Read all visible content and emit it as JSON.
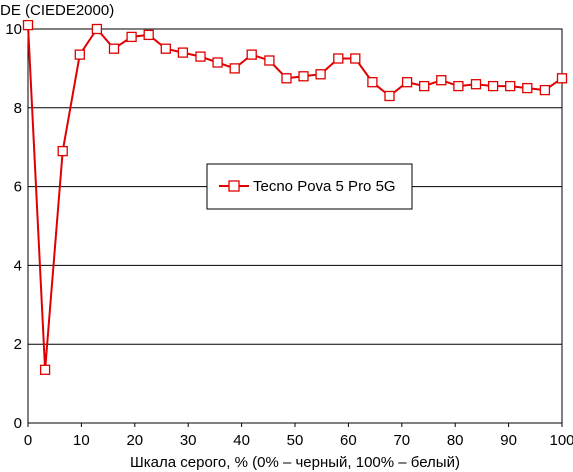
{
  "chart_data": {
    "type": "line",
    "title": "",
    "xlabel": "Шкала серого, % (0% – черный, 100% – белый)",
    "ylabel": "DE (CIEDE2000)",
    "xlim": [
      0,
      100
    ],
    "ylim": [
      0,
      10
    ],
    "xticks": [
      "0",
      "10",
      "20",
      "30",
      "40",
      "50",
      "60",
      "70",
      "80",
      "90",
      "100"
    ],
    "yticks": [
      "0",
      "2",
      "4",
      "6",
      "8",
      "10"
    ],
    "grid": "horizontal",
    "legend_position": "center",
    "series": [
      {
        "name": "Tecno Pova 5 Pro 5G",
        "color": "#e00000",
        "marker": "open-square",
        "x": [
          0,
          3.2,
          6.5,
          9.7,
          12.9,
          16.1,
          19.4,
          22.6,
          25.8,
          29.0,
          32.3,
          35.5,
          38.7,
          41.9,
          45.2,
          48.4,
          51.6,
          54.8,
          58.1,
          61.3,
          64.5,
          67.7,
          71.0,
          74.2,
          77.4,
          80.6,
          83.9,
          87.1,
          90.3,
          93.5,
          96.8,
          100
        ],
        "y": [
          10.1,
          1.35,
          6.9,
          9.35,
          10.0,
          9.5,
          9.8,
          9.85,
          9.5,
          9.4,
          9.3,
          9.15,
          9.0,
          9.35,
          9.2,
          8.75,
          8.8,
          8.85,
          9.25,
          9.25,
          8.65,
          8.3,
          8.65,
          8.55,
          8.7,
          8.55,
          8.6,
          8.55,
          8.55,
          8.5,
          8.45,
          8.75
        ]
      }
    ]
  }
}
